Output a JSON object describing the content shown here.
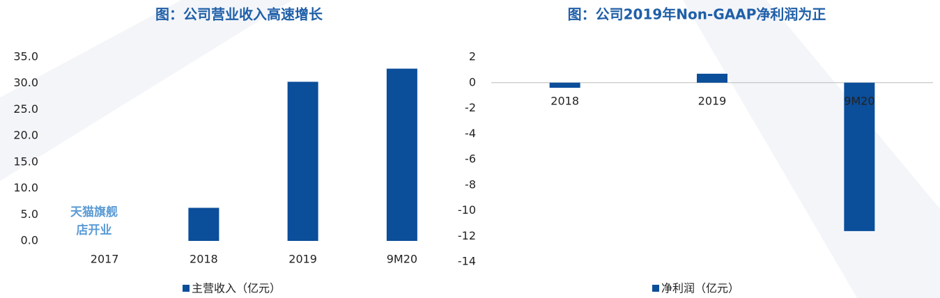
{
  "chart_data": [
    {
      "type": "bar",
      "title": "图：公司营业收入高速增长",
      "categories": [
        "2017",
        "2018",
        "2019",
        "9M20"
      ],
      "series": [
        {
          "name": "主营收入（亿元）",
          "color": "#0b4e9a",
          "values": [
            0,
            6.3,
            30.3,
            32.8
          ]
        }
      ],
      "ylim": [
        0,
        35
      ],
      "yticks": [
        {
          "value": 0,
          "label": "0.0"
        },
        {
          "value": 5,
          "label": "5.0"
        },
        {
          "value": 10,
          "label": "10.0"
        },
        {
          "value": 15,
          "label": "15.0"
        },
        {
          "value": 20,
          "label": "20.0"
        },
        {
          "value": 25,
          "label": "25.0"
        },
        {
          "value": 30,
          "label": "30.0"
        },
        {
          "value": 35,
          "label": "35.0"
        }
      ],
      "annotation": [
        "天猫旗舰",
        "店开业"
      ],
      "zero_line": false,
      "legend": "bottom"
    },
    {
      "type": "bar",
      "title": "图：公司2019年Non-GAAP净利润为正",
      "categories": [
        "2018",
        "2019",
        "9M20"
      ],
      "series": [
        {
          "name": "净利润（亿元）",
          "color": "#0b4e9a",
          "values": [
            -0.4,
            0.7,
            -11.6
          ]
        }
      ],
      "ylim": [
        -14,
        2
      ],
      "yticks": [
        -14,
        -12,
        -10,
        -8,
        -6,
        -4,
        -2,
        0,
        2
      ],
      "zero_line": true,
      "legend": "bottom"
    }
  ]
}
